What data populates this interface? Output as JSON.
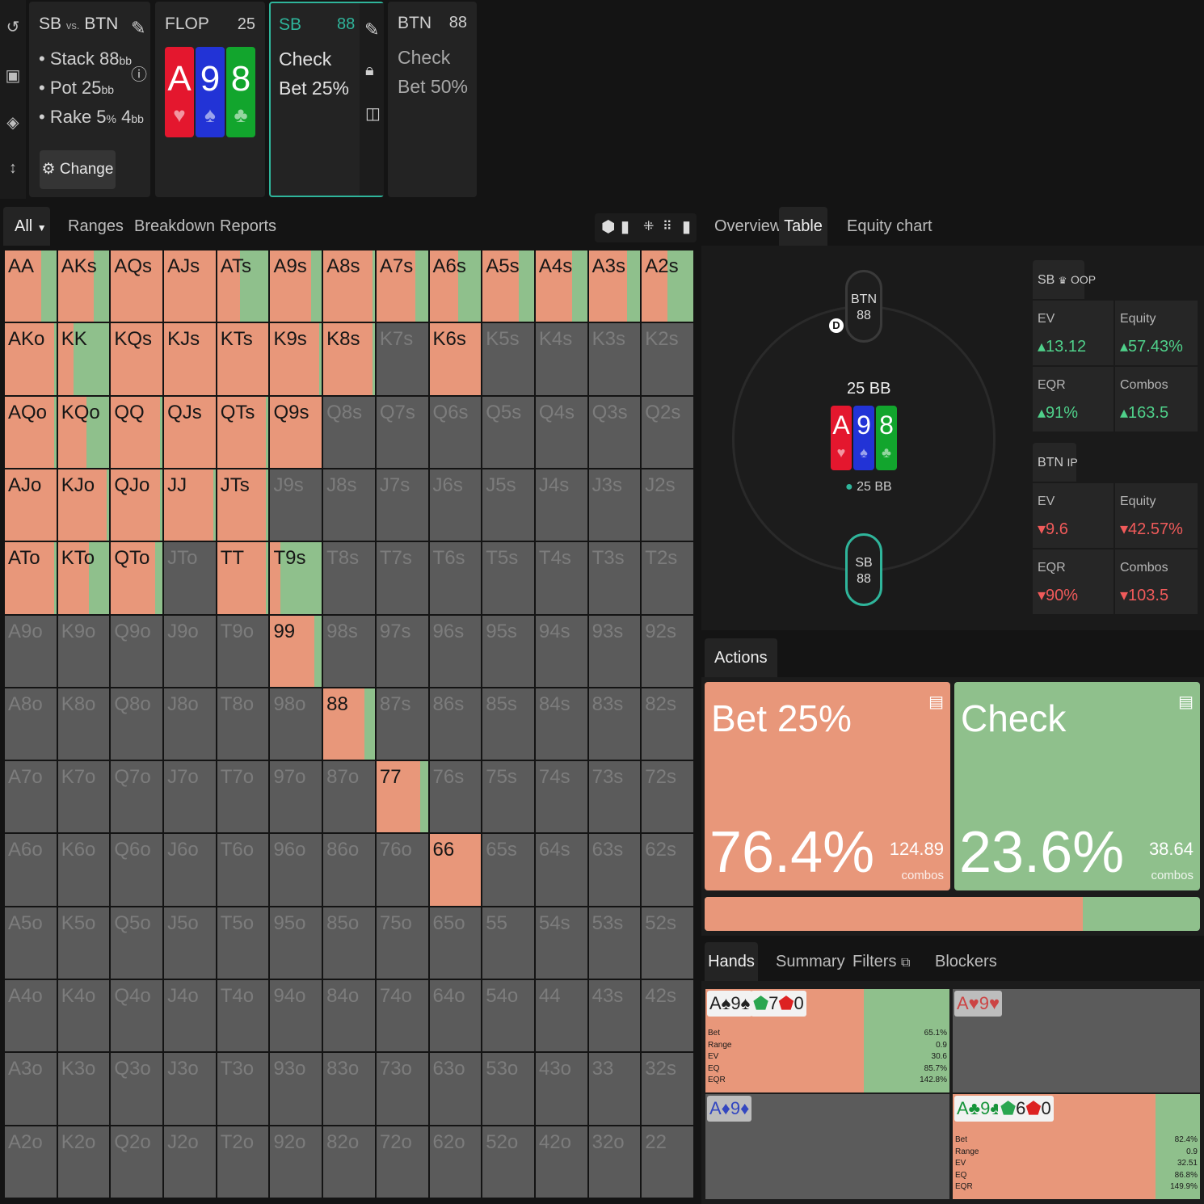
{
  "sidebar": {
    "icons": [
      "undo-icon",
      "save-icon",
      "gamepad-icon",
      "resize-icon"
    ]
  },
  "info": {
    "title_a": "SB",
    "title_vs": "vs.",
    "title_b": "BTN",
    "stack_label": "Stack 88",
    "stack_unit": "bb",
    "pot_label": "Pot 25",
    "pot_unit": "bb",
    "rake_label": "Rake 5",
    "rake_pct": "%",
    "rake_cap": " 4",
    "rake_unit": "bb",
    "change_label": "Change"
  },
  "flop": {
    "label": "FLOP",
    "pot": "25",
    "cards": [
      {
        "rank": "A",
        "suit": "♥",
        "color": "#e4172e"
      },
      {
        "rank": "9",
        "suit": "♠",
        "color": "#2233d6"
      },
      {
        "rank": "8",
        "suit": "♣",
        "color": "#12a52d"
      }
    ]
  },
  "sb_panel": {
    "label": "SB",
    "stack": "88",
    "options": [
      "Check",
      "Bet 25%"
    ]
  },
  "btn_panel": {
    "label": "BTN",
    "stack": "88",
    "options": [
      "Check",
      "Bet 50%"
    ]
  },
  "left_tabs": {
    "filter": "All",
    "tabs": [
      "Ranges",
      "Breakdown",
      "Reports"
    ]
  },
  "right_tabs": {
    "tabs": [
      "Overview",
      "Table",
      "Equity chart"
    ],
    "active": "Table"
  },
  "colors": {
    "bet": "#e8977a",
    "check": "#8fc08c",
    "empty": "#5b5b5b",
    "accent": "#2fb59b"
  },
  "matrix": {
    "hands": [
      [
        "AA",
        "AKs",
        "AQs",
        "AJs",
        "ATs",
        "A9s",
        "A8s",
        "A7s",
        "A6s",
        "A5s",
        "A4s",
        "A3s",
        "A2s"
      ],
      [
        "AKo",
        "KK",
        "KQs",
        "KJs",
        "KTs",
        "K9s",
        "K8s",
        "K7s",
        "K6s",
        "K5s",
        "K4s",
        "K3s",
        "K2s"
      ],
      [
        "AQo",
        "KQo",
        "QQ",
        "QJs",
        "QTs",
        "Q9s",
        "Q8s",
        "Q7s",
        "Q6s",
        "Q5s",
        "Q4s",
        "Q3s",
        "Q2s"
      ],
      [
        "AJo",
        "KJo",
        "QJo",
        "JJ",
        "JTs",
        "J9s",
        "J8s",
        "J7s",
        "J6s",
        "J5s",
        "J4s",
        "J3s",
        "J2s"
      ],
      [
        "ATo",
        "KTo",
        "QTo",
        "JTo",
        "TT",
        "T9s",
        "T8s",
        "T7s",
        "T6s",
        "T5s",
        "T4s",
        "T3s",
        "T2s"
      ],
      [
        "A9o",
        "K9o",
        "Q9o",
        "J9o",
        "T9o",
        "99",
        "98s",
        "97s",
        "96s",
        "95s",
        "94s",
        "93s",
        "92s"
      ],
      [
        "A8o",
        "K8o",
        "Q8o",
        "J8o",
        "T8o",
        "98o",
        "88",
        "87s",
        "86s",
        "85s",
        "84s",
        "83s",
        "82s"
      ],
      [
        "A7o",
        "K7o",
        "Q7o",
        "J7o",
        "T7o",
        "97o",
        "87o",
        "77",
        "76s",
        "75s",
        "74s",
        "73s",
        "72s"
      ],
      [
        "A6o",
        "K6o",
        "Q6o",
        "J6o",
        "T6o",
        "96o",
        "86o",
        "76o",
        "66",
        "65s",
        "64s",
        "63s",
        "62s"
      ],
      [
        "A5o",
        "K5o",
        "Q5o",
        "J5o",
        "T5o",
        "95o",
        "85o",
        "75o",
        "65o",
        "55",
        "54s",
        "53s",
        "52s"
      ],
      [
        "A4o",
        "K4o",
        "Q4o",
        "J4o",
        "T4o",
        "94o",
        "84o",
        "74o",
        "64o",
        "54o",
        "44",
        "43s",
        "42s"
      ],
      [
        "A3o",
        "K3o",
        "Q3o",
        "J3o",
        "T3o",
        "93o",
        "83o",
        "73o",
        "63o",
        "53o",
        "43o",
        "33",
        "32s"
      ],
      [
        "A2o",
        "K2o",
        "Q2o",
        "J2o",
        "T2o",
        "92o",
        "82o",
        "72o",
        "62o",
        "52o",
        "42o",
        "32o",
        "22"
      ]
    ],
    "bet_fraction": [
      [
        0.7,
        0.7,
        1,
        1,
        0.45,
        0.8,
        0.95,
        0.75,
        0.55,
        0.7,
        0.7,
        0.75,
        0.5
      ],
      [
        0.95,
        0.3,
        1,
        1,
        1,
        0.95,
        0.95,
        null,
        1,
        null,
        null,
        null,
        null
      ],
      [
        0.95,
        0.55,
        0.95,
        1,
        0.95,
        1,
        null,
        null,
        null,
        null,
        null,
        null,
        null
      ],
      [
        1,
        0.95,
        0.95,
        0.95,
        0.95,
        null,
        null,
        null,
        null,
        null,
        null,
        null,
        null
      ],
      [
        0.95,
        0.6,
        0.85,
        null,
        0.95,
        0.2,
        null,
        null,
        null,
        null,
        null,
        null,
        null
      ],
      [
        null,
        null,
        null,
        null,
        null,
        0.85,
        null,
        null,
        null,
        null,
        null,
        null,
        null
      ],
      [
        null,
        null,
        null,
        null,
        null,
        null,
        0.8,
        null,
        null,
        null,
        null,
        null,
        null
      ],
      [
        null,
        null,
        null,
        null,
        null,
        null,
        null,
        0.85,
        null,
        null,
        null,
        null,
        null
      ],
      [
        null,
        null,
        null,
        null,
        null,
        null,
        null,
        null,
        1,
        null,
        null,
        null,
        null
      ],
      [
        null,
        null,
        null,
        null,
        null,
        null,
        null,
        null,
        null,
        null,
        null,
        null,
        null
      ],
      [
        null,
        null,
        null,
        null,
        null,
        null,
        null,
        null,
        null,
        null,
        null,
        null,
        null
      ],
      [
        null,
        null,
        null,
        null,
        null,
        null,
        null,
        null,
        null,
        null,
        null,
        null,
        null
      ],
      [
        null,
        null,
        null,
        null,
        null,
        null,
        null,
        null,
        null,
        null,
        null,
        null,
        null
      ]
    ]
  },
  "table": {
    "btn": {
      "label": "BTN",
      "stack": "88",
      "dealer": "D"
    },
    "sb": {
      "label": "SB",
      "stack": "88"
    },
    "pot": "25 BB",
    "pot_sub": "25 BB"
  },
  "sb_stats": {
    "title": "SB",
    "pos": "OOP",
    "ev_label": "EV",
    "ev": "13.12",
    "eq_label": "Equity",
    "eq": "57.43%",
    "eqr_label": "EQR",
    "eqr": "91%",
    "combos_label": "Combos",
    "combos": "163.5"
  },
  "btn_stats": {
    "title": "BTN",
    "pos": "IP",
    "ev_label": "EV",
    "ev": "9.6",
    "eq_label": "Equity",
    "eq": "42.57%",
    "eqr_label": "EQR",
    "eqr": "90%",
    "combos_label": "Combos",
    "combos": "103.5"
  },
  "actions": {
    "label": "Actions",
    "bet": {
      "name": "Bet 25%",
      "pct": "76.4%",
      "combos": "124.89",
      "combos_label": "combos",
      "share": 0.764
    },
    "check": {
      "name": "Check",
      "pct": "23.6%",
      "combos": "38.64",
      "combos_label": "combos",
      "share": 0.236
    }
  },
  "hands_tabs": {
    "tabs": [
      "Hands",
      "Summary",
      "Filters",
      "Blockers"
    ]
  },
  "hands": [
    {
      "cards": "A♠9♠",
      "extra": "7",
      "extra2": "0",
      "bet_fraction": 0.65,
      "labels": [
        "Bet",
        "Range",
        "EV",
        "EQ",
        "EQR"
      ],
      "values": [
        "65.1%",
        "0.9",
        "30.6",
        "85.7%",
        "142.8%"
      ]
    },
    {
      "cards": "A♥9♥",
      "bet_fraction": null
    },
    {
      "cards": "A♦9♦",
      "bet_fraction": null
    },
    {
      "cards": "A♣9♣",
      "extra": "6",
      "extra2": "0",
      "bet_fraction": 0.82,
      "labels": [
        "Bet",
        "Range",
        "EV",
        "EQ",
        "EQR"
      ],
      "values": [
        "82.4%",
        "0.9",
        "32.51",
        "86.8%",
        "149.9%"
      ]
    }
  ]
}
